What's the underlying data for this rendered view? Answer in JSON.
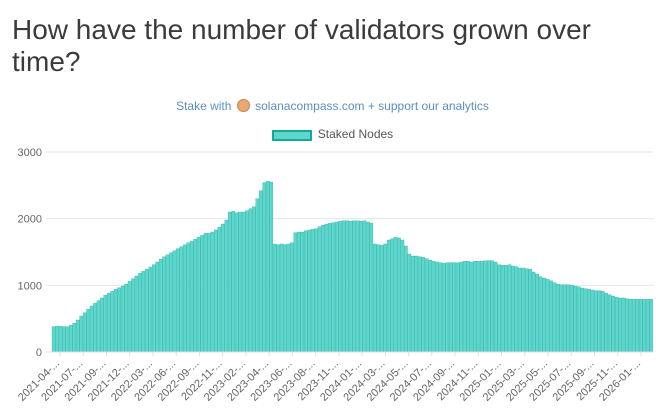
{
  "title": "How have the number of validators grown over time?",
  "credit": {
    "prefix": "Stake with",
    "logo_icon": "solana-compass-logo-icon",
    "link_text": "solanacompass.com",
    "suffix": "+ support our analytics"
  },
  "chart_data": {
    "type": "bar",
    "title": "How have the number of validators grown over time?",
    "xlabel": "",
    "ylabel": "",
    "ylim": [
      0,
      3000
    ],
    "yticks": [
      0,
      1000,
      2000,
      3000
    ],
    "grid": true,
    "legend_position": "top-center",
    "colors": {
      "fill": "#5fd6cc",
      "stroke": "#17a89c"
    },
    "x_tick_labels": [
      "2021-04-...",
      "2021-07-...",
      "2021-09-...",
      "2021-12-...",
      "2022-03-...",
      "2022-06-...",
      "2022-09-...",
      "2022-11-...",
      "2023-02-...",
      "2023-04-...",
      "2023-06-...",
      "2023-08-...",
      "2023-11-...",
      "2024-01-...",
      "2024-03-...",
      "2024-05-...",
      "2024-07-...",
      "2024-09-...",
      "2024-11-...",
      "2025-01-...",
      "2025-03-...",
      "2025-05-...",
      "2025-07-...",
      "2025-09-...",
      "2025-11-...",
      "2026-01-..."
    ],
    "series": [
      {
        "name": "Staked Nodes",
        "values": [
          380,
          385,
          385,
          380,
          380,
          400,
          430,
          480,
          540,
          590,
          640,
          690,
          730,
          770,
          810,
          850,
          880,
          910,
          940,
          965,
          990,
          1020,
          1060,
          1100,
          1140,
          1180,
          1210,
          1240,
          1275,
          1310,
          1350,
          1390,
          1430,
          1460,
          1490,
          1520,
          1550,
          1580,
          1610,
          1640,
          1660,
          1690,
          1720,
          1750,
          1780,
          1780,
          1800,
          1830,
          1870,
          1920,
          1980,
          2100,
          2110,
          2090,
          2100,
          2100,
          2120,
          2150,
          2180,
          2300,
          2420,
          2540,
          2560,
          2550,
          1620,
          1610,
          1620,
          1610,
          1620,
          1640,
          1790,
          1800,
          1800,
          1820,
          1830,
          1840,
          1850,
          1880,
          1900,
          1920,
          1930,
          1940,
          1950,
          1960,
          1970,
          1970,
          1960,
          1970,
          1970,
          1960,
          1970,
          1950,
          1930,
          1620,
          1610,
          1600,
          1620,
          1680,
          1700,
          1720,
          1710,
          1680,
          1590,
          1470,
          1440,
          1440,
          1430,
          1420,
          1400,
          1380,
          1360,
          1350,
          1340,
          1330,
          1340,
          1340,
          1340,
          1340,
          1350,
          1360,
          1360,
          1350,
          1360,
          1360,
          1360,
          1370,
          1370,
          1370,
          1350,
          1310,
          1300,
          1300,
          1310,
          1290,
          1280,
          1260,
          1260,
          1250,
          1240,
          1200,
          1170,
          1130,
          1110,
          1090,
          1070,
          1040,
          1020,
          1010,
          1010,
          1010,
          1000,
          990,
          980,
          960,
          950,
          940,
          930,
          920,
          920,
          910,
          880,
          860,
          840,
          820,
          810,
          810,
          800,
          790,
          790,
          790,
          790,
          790,
          790,
          790
        ]
      }
    ]
  }
}
